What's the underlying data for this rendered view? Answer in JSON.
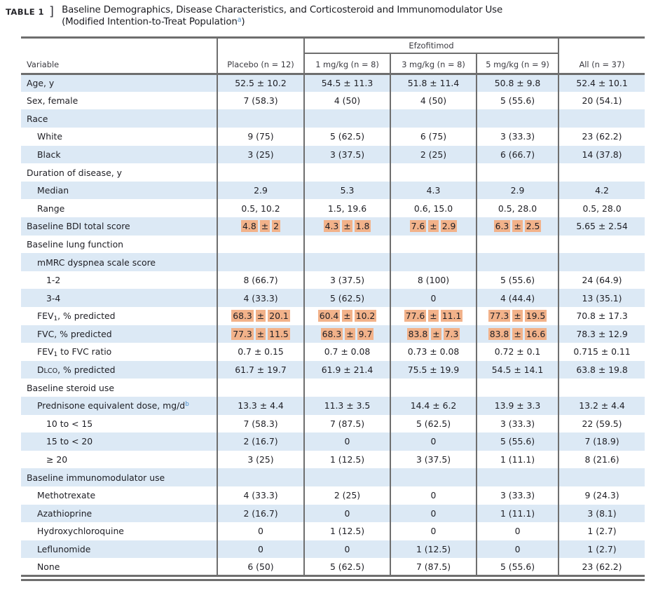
{
  "title": {
    "table_label": "TABLE 1",
    "bracket": "]",
    "line1": "Baseline Demographics, Disease Characteristics, and Corticosteroid and Immunomodulator Use",
    "line2_pre": "(Modified Intention-to-Treat Population",
    "footnote_sup": "a",
    "line2_post": ")"
  },
  "colors": {
    "row_stripe": "#dce9f5",
    "highlight": "#f2b28a",
    "border": "#6e6e6e",
    "footnote_link": "#4d8fcc"
  },
  "table": {
    "group_header": "Efzofitimod",
    "columns": [
      "Variable",
      "Placebo (n = 12)",
      "1 mg/kg (n = 8)",
      "3 mg/kg (n = 8)",
      "5 mg/kg (n = 9)",
      "All (n = 37)"
    ],
    "rows": [
      {
        "label": "Age, y",
        "indent": 0,
        "values": [
          "52.5 ± 10.2",
          "54.5 ± 11.3",
          "51.8 ± 11.4",
          "50.8 ± 9.8",
          "52.4 ± 10.1"
        ]
      },
      {
        "label": "Sex, female",
        "indent": 0,
        "values": [
          "7 (58.3)",
          "4 (50)",
          "4 (50)",
          "5 (55.6)",
          "20 (54.1)"
        ]
      },
      {
        "label": "Race",
        "indent": 0,
        "values": [
          "",
          "",
          "",
          "",
          ""
        ]
      },
      {
        "label": "White",
        "indent": 1,
        "values": [
          "9 (75)",
          "5 (62.5)",
          "6 (75)",
          "3 (33.3)",
          "23 (62.2)"
        ]
      },
      {
        "label": "Black",
        "indent": 1,
        "values": [
          "3 (25)",
          "3 (37.5)",
          "2 (25)",
          "6 (66.7)",
          "14 (37.8)"
        ]
      },
      {
        "label": "Duration of disease, y",
        "indent": 0,
        "values": [
          "",
          "",
          "",
          "",
          ""
        ]
      },
      {
        "label": "Median",
        "indent": 1,
        "values": [
          "2.9",
          "5.3",
          "4.3",
          "2.9",
          "4.2"
        ]
      },
      {
        "label": "Range",
        "indent": 1,
        "values": [
          "0.5, 10.2",
          "1.5, 19.6",
          "0.6, 15.0",
          "0.5, 28.0",
          "0.5, 28.0"
        ]
      },
      {
        "label": "Baseline BDI total score",
        "indent": 0,
        "values": [
          "4.8 ± 2",
          "4.3 ± 1.8",
          "7.6 ± 2.9",
          "6.3 ± 2.5",
          "5.65 ± 2.54"
        ],
        "highlight": [
          true,
          true,
          true,
          true,
          false
        ]
      },
      {
        "label": "Baseline lung function",
        "indent": 0,
        "values": [
          "",
          "",
          "",
          "",
          ""
        ]
      },
      {
        "label": "mMRC dyspnea scale score",
        "indent": 1,
        "values": [
          "",
          "",
          "",
          "",
          ""
        ]
      },
      {
        "label": "1-2",
        "indent": 2,
        "values": [
          "8 (66.7)",
          "3 (37.5)",
          "8 (100)",
          "5 (55.6)",
          "24 (64.9)"
        ]
      },
      {
        "label": "3-4",
        "indent": 2,
        "values": [
          "4 (33.3)",
          "5 (62.5)",
          "0",
          "4 (44.4)",
          "13 (35.1)"
        ]
      },
      {
        "label": "FEV1, % predicted",
        "indent": 1,
        "label_parts": [
          {
            "t": "FEV"
          },
          {
            "t": "1",
            "style": "sub"
          },
          {
            "t": ", % predicted"
          }
        ],
        "values": [
          "68.3 ± 20.1",
          "60.4 ± 10.2",
          "77.6 ± 11.1",
          "77.3 ± 19.5",
          "70.8 ± 17.3"
        ],
        "highlight": [
          true,
          true,
          true,
          true,
          false
        ]
      },
      {
        "label": "FVC, % predicted",
        "indent": 1,
        "values": [
          "77.3 ± 11.5",
          "68.3 ± 9.7",
          "83.8 ± 7.3",
          "83.8 ± 16.6",
          "78.3 ± 12.9"
        ],
        "highlight": [
          true,
          true,
          true,
          true,
          false
        ]
      },
      {
        "label": "FEV1 to FVC ratio",
        "indent": 1,
        "label_parts": [
          {
            "t": "FEV"
          },
          {
            "t": "1",
            "style": "sub"
          },
          {
            "t": " to FVC ratio"
          }
        ],
        "values": [
          "0.7 ± 0.15",
          "0.7 ± 0.08",
          "0.73 ± 0.08",
          "0.72 ± 0.1",
          "0.715 ± 0.11"
        ]
      },
      {
        "label": "DLCO, % predicted",
        "indent": 1,
        "label_parts": [
          {
            "t": "D"
          },
          {
            "t": "LCO",
            "style": "smallcaps"
          },
          {
            "t": ", % predicted"
          }
        ],
        "values": [
          "61.7 ± 19.7",
          "61.9 ± 21.4",
          "75.5 ± 19.9",
          "54.5 ± 14.1",
          "63.8 ± 19.8"
        ]
      },
      {
        "label": "Baseline steroid use",
        "indent": 0,
        "values": [
          "",
          "",
          "",
          "",
          ""
        ]
      },
      {
        "label": "Prednisone equivalent dose, mg/db",
        "indent": 1,
        "label_parts": [
          {
            "t": "Prednisone equivalent dose, mg/d"
          },
          {
            "t": "b",
            "style": "sup-link"
          }
        ],
        "values": [
          "13.3 ± 4.4",
          "11.3 ± 3.5",
          "14.4 ± 6.2",
          "13.9 ± 3.3",
          "13.2 ± 4.4"
        ]
      },
      {
        "label": "10 to < 15",
        "indent": 2,
        "values": [
          "7 (58.3)",
          "7 (87.5)",
          "5 (62.5)",
          "3 (33.3)",
          "22 (59.5)"
        ]
      },
      {
        "label": "15 to < 20",
        "indent": 2,
        "values": [
          "2 (16.7)",
          "0",
          "0",
          "5 (55.6)",
          "7 (18.9)"
        ]
      },
      {
        "label": "≥ 20",
        "indent": 2,
        "values": [
          "3 (25)",
          "1 (12.5)",
          "3 (37.5)",
          "1 (11.1)",
          "8 (21.6)"
        ]
      },
      {
        "label": "Baseline immunomodulator use",
        "indent": 0,
        "values": [
          "",
          "",
          "",
          "",
          ""
        ]
      },
      {
        "label": "Methotrexate",
        "indent": 1,
        "values": [
          "4 (33.3)",
          "2 (25)",
          "0",
          "3 (33.3)",
          "9 (24.3)"
        ]
      },
      {
        "label": "Azathioprine",
        "indent": 1,
        "values": [
          "2 (16.7)",
          "0",
          "0",
          "1 (11.1)",
          "3 (8.1)"
        ]
      },
      {
        "label": "Hydroxychloroquine",
        "indent": 1,
        "values": [
          "0",
          "1 (12.5)",
          "0",
          "0",
          "1 (2.7)"
        ]
      },
      {
        "label": "Leflunomide",
        "indent": 1,
        "values": [
          "0",
          "0",
          "1 (12.5)",
          "0",
          "1 (2.7)"
        ]
      },
      {
        "label": "None",
        "indent": 1,
        "values": [
          "6 (50)",
          "5 (62.5)",
          "7 (87.5)",
          "5 (55.6)",
          "23 (62.2)"
        ]
      }
    ]
  }
}
